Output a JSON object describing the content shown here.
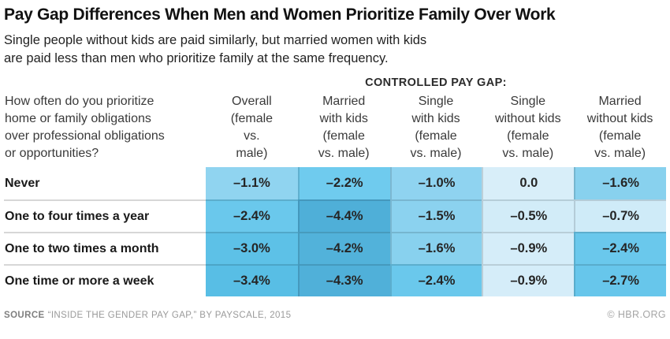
{
  "header": {
    "title": "Pay Gap Differences When Men and Women Prioritize Family Over Work",
    "subtitle": "Single people without kids are paid similarly, but married women with kids\nare paid less than men who prioritize family at the same frequency."
  },
  "table": {
    "group_header": "CONTROLLED PAY GAP:",
    "question": "How often do you prioritize\nhome or family obligations\nover professional obligations\nor opportunities?",
    "columns": [
      {
        "label": "Overall\n(female\nvs.\nmale)"
      },
      {
        "label": "Married\nwith kids\n(female\nvs. male)"
      },
      {
        "label": "Single\nwith kids\n(female\nvs. male)"
      },
      {
        "label": "Single\nwithout kids\n(female\nvs. male)"
      },
      {
        "label": "Married\nwithout kids\n(female\nvs. male)"
      }
    ],
    "rows": [
      {
        "label": "Never",
        "cells": [
          {
            "v": "–1.1%",
            "bg": "#90d4f0"
          },
          {
            "v": "–2.2%",
            "bg": "#6fcbee"
          },
          {
            "v": "–1.0%",
            "bg": "#8fd3f0"
          },
          {
            "v": "0.0",
            "bg": "#d8eef9"
          },
          {
            "v": "–1.6%",
            "bg": "#88d1ee"
          }
        ]
      },
      {
        "label": "One to four times a year",
        "cells": [
          {
            "v": "–2.4%",
            "bg": "#6ac8ec"
          },
          {
            "v": "–4.4%",
            "bg": "#4fafd8"
          },
          {
            "v": "–1.5%",
            "bg": "#8bd2ef"
          },
          {
            "v": "–0.5%",
            "bg": "#d2ecf8"
          },
          {
            "v": "–0.7%",
            "bg": "#cfebf8"
          }
        ]
      },
      {
        "label": "One to two times a month",
        "cells": [
          {
            "v": "–3.0%",
            "bg": "#5dc1e7"
          },
          {
            "v": "–4.2%",
            "bg": "#52b2da"
          },
          {
            "v": "–1.6%",
            "bg": "#88d1ee"
          },
          {
            "v": "–0.9%",
            "bg": "#d5edf9"
          },
          {
            "v": "–2.4%",
            "bg": "#6ac8ec"
          }
        ]
      },
      {
        "label": "One time or more a week",
        "cells": [
          {
            "v": "–3.4%",
            "bg": "#58bee5"
          },
          {
            "v": "–4.3%",
            "bg": "#50b0d9"
          },
          {
            "v": "–2.4%",
            "bg": "#6ac8ec"
          },
          {
            "v": "–0.9%",
            "bg": "#d5edf9"
          },
          {
            "v": "–2.7%",
            "bg": "#67c6eb"
          }
        ]
      }
    ]
  },
  "footer": {
    "source_label": "SOURCE",
    "source_text": "“INSIDE THE GENDER PAY GAP,” BY PAYSCALE, 2015",
    "credit": "© HBR.ORG"
  },
  "chart_data": {
    "type": "heatmap",
    "title": "Pay Gap Differences When Men and Women Prioritize Family Over Work",
    "subtitle": "Single people without kids are paid similarly, but married women with kids are paid less than men who prioritize family at the same frequency.",
    "group_header": "CONTROLLED PAY GAP:",
    "row_question": "How often do you prioritize home or family obligations over professional obligations or opportunities?",
    "rows": [
      "Never",
      "One to four times a year",
      "One to two times a month",
      "One time or more a week"
    ],
    "columns": [
      "Overall (female vs. male)",
      "Married with kids (female vs. male)",
      "Single with kids (female vs. male)",
      "Single without kids (female vs. male)",
      "Married without kids (female vs. male)"
    ],
    "values_pct": [
      [
        -1.1,
        -2.2,
        -1.0,
        0.0,
        -1.6
      ],
      [
        -2.4,
        -4.4,
        -1.5,
        -0.5,
        -0.7
      ],
      [
        -3.0,
        -4.2,
        -1.6,
        -0.9,
        -2.4
      ],
      [
        -3.4,
        -4.3,
        -2.4,
        -0.9,
        -2.7
      ]
    ],
    "unit": "%",
    "color_scale": {
      "min_color": "#4fafd8",
      "max_color": "#d8eef9",
      "note": "darker blue = larger negative pay gap"
    },
    "source": "“Inside the Gender Pay Gap,” by PayScale, 2015",
    "credit": "HBR.ORG"
  }
}
